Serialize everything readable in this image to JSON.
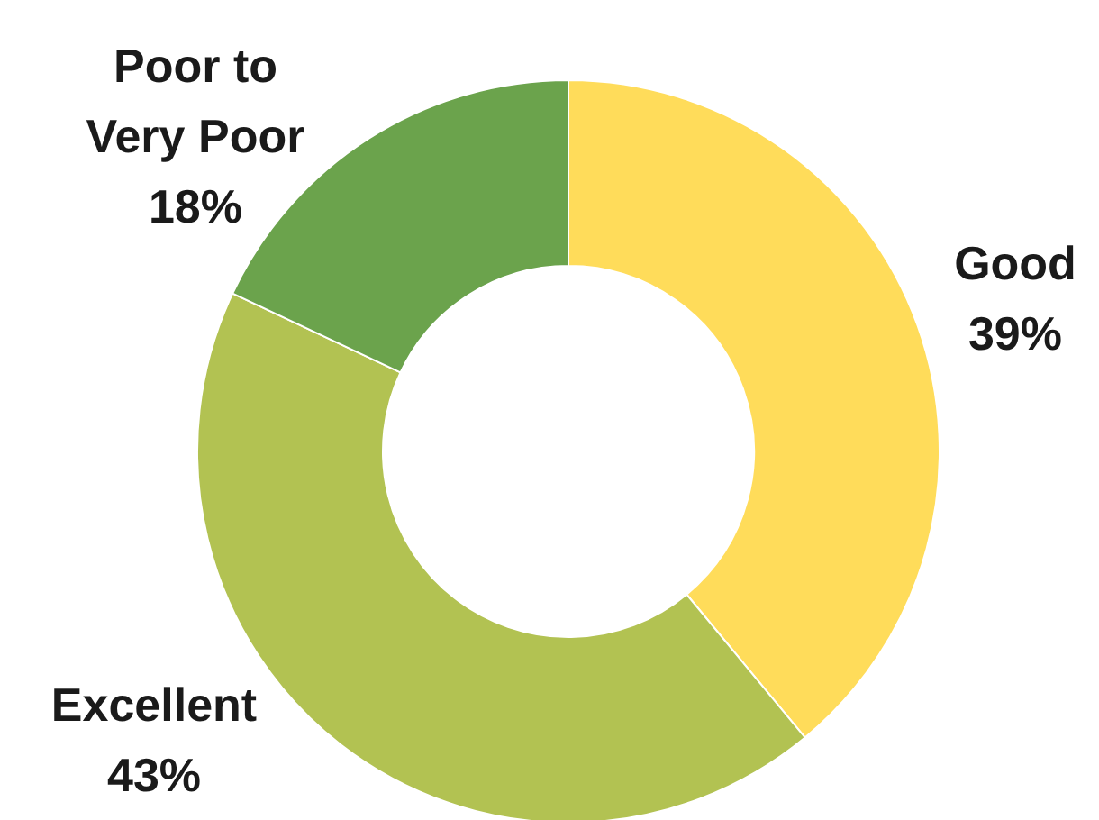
{
  "chart_data": {
    "type": "donut",
    "categories": [
      "Good",
      "Excellent",
      "Poor to\nVery Poor"
    ],
    "values": [
      39,
      43,
      18
    ],
    "colors": [
      "#ffdc5a",
      "#b2c252",
      "#6ba34c"
    ],
    "value_labels": [
      "39%",
      "43%",
      "18%"
    ]
  }
}
